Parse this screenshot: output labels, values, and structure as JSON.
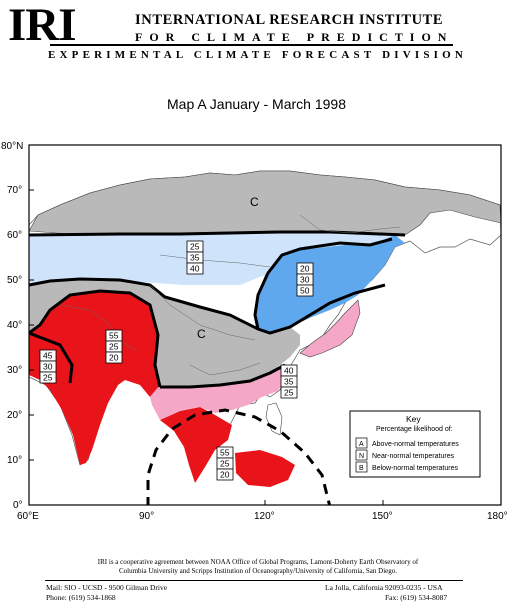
{
  "header": {
    "logo": "IRI",
    "org_line1": "INTERNATIONAL RESEARCH INSTITUTE",
    "org_line2": "FOR CLIMATE PREDICTION",
    "division": "EXPERIMENTAL CLIMATE FORECAST DIVISION"
  },
  "map_title": "Map A  January - March  1998",
  "map": {
    "lat_labels": [
      "80°N",
      "70°",
      "60°",
      "50°",
      "40°",
      "30°",
      "20°",
      "10°",
      "0°"
    ],
    "lon_labels": [
      "60°E",
      "90°",
      "120°",
      "150°",
      "180°"
    ],
    "zones": [
      {
        "label": "C",
        "meaning": "climatology"
      },
      {
        "label": "C",
        "meaning": "climatology"
      }
    ],
    "boxes": [
      {
        "values": [
          "25",
          "35",
          "40"
        ]
      },
      {
        "values": [
          "20",
          "30",
          "50"
        ]
      },
      {
        "values": [
          "55",
          "25",
          "20"
        ]
      },
      {
        "values": [
          "45",
          "30",
          "25"
        ]
      },
      {
        "values": [
          "40",
          "35",
          "25"
        ]
      },
      {
        "values": [
          "55",
          "25",
          "20"
        ]
      }
    ],
    "colors": {
      "climatology": "#b9b9b9",
      "below_light": "#cfe4fb",
      "below_strong": "#5fa8ee",
      "above_strong": "#e8141a",
      "above_light": "#f4a7c6",
      "land_other": "#ffffff"
    }
  },
  "key": {
    "title": "Key",
    "subtitle": "Percentage likelihood of:",
    "rows": [
      {
        "letter": "A",
        "text": "Above-normal temperatures"
      },
      {
        "letter": "N",
        "text": "Near-normal temperatures"
      },
      {
        "letter": "B",
        "text": "Below-normal temperatures"
      }
    ]
  },
  "footer": {
    "note_line1": "IRI is a cooperative agreement between NOAA Office of Global Programs, Lamont-Doherty Earth Observatory of",
    "note_line2": "Columbia University and Scripps Institution of Oceanography/University of California, San Diego.",
    "addr_left1": "Mail: SIO - UCSD - 9500 Gilman Drive",
    "addr_left2": "Phone: (619) 534-1868",
    "addr_right1": "La Jolla, California 92093-0235 - USA",
    "addr_right2": "Fax: (619) 534-8087"
  }
}
